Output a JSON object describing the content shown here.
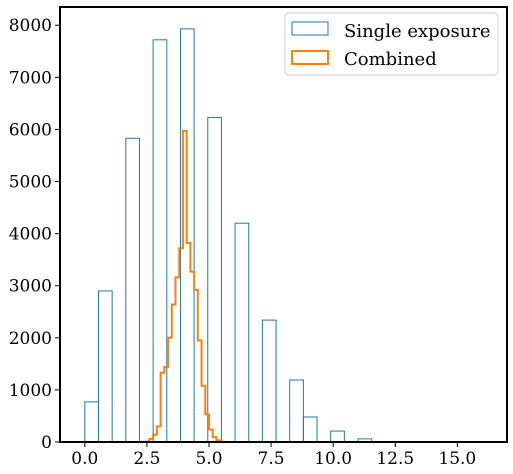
{
  "chart_data": {
    "type": "histogram",
    "title": "",
    "xlabel": "",
    "ylabel": "",
    "xlim": [
      -1.0,
      17.0
    ],
    "ylim": [
      0,
      8350
    ],
    "xticks": [
      0.0,
      2.5,
      5.0,
      7.5,
      10.0,
      12.5,
      15.0
    ],
    "xtick_labels": [
      "0.0",
      "2.5",
      "5.0",
      "7.5",
      "10.0",
      "12.5",
      "15.0"
    ],
    "yticks": [
      0,
      1000,
      2000,
      3000,
      4000,
      5000,
      6000,
      7000,
      8000
    ],
    "ytick_labels": [
      "0",
      "1000",
      "2000",
      "3000",
      "4000",
      "5000",
      "6000",
      "7000",
      "8000"
    ],
    "legend_position": "top-right",
    "series": [
      {
        "name": "Single exposure",
        "style": "bar-outline",
        "color": "#1f77b4",
        "bin_width": 0.55,
        "bins": [
          {
            "x": 0.0,
            "count": 770
          },
          {
            "x": 0.55,
            "count": 2900
          },
          {
            "x": 1.65,
            "count": 5830
          },
          {
            "x": 2.75,
            "count": 7720
          },
          {
            "x": 3.85,
            "count": 7930
          },
          {
            "x": 4.95,
            "count": 6230
          },
          {
            "x": 6.05,
            "count": 4200
          },
          {
            "x": 7.15,
            "count": 2340
          },
          {
            "x": 8.25,
            "count": 1190
          },
          {
            "x": 8.8,
            "count": 480
          },
          {
            "x": 9.9,
            "count": 210
          },
          {
            "x": 11.0,
            "count": 60
          }
        ]
      },
      {
        "name": "Combined",
        "style": "step",
        "color": "#ff7f0e",
        "edges": [
          2.45,
          2.6,
          2.75,
          2.9,
          3.05,
          3.2,
          3.35,
          3.5,
          3.65,
          3.8,
          3.95,
          4.1,
          4.25,
          4.4,
          4.55,
          4.7,
          4.85,
          5.0,
          5.15,
          5.3,
          5.45,
          5.6
        ],
        "counts": [
          10,
          60,
          140,
          300,
          1330,
          1440,
          2000,
          2640,
          3160,
          3720,
          5970,
          3820,
          3270,
          2920,
          1950,
          1080,
          530,
          240,
          90,
          30,
          5
        ]
      }
    ]
  }
}
